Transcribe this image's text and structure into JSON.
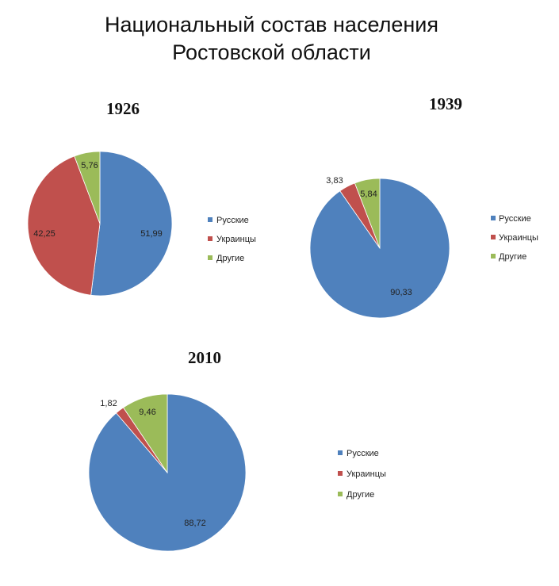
{
  "page": {
    "title_line1": "Национальный состав населения",
    "title_line2": "Ростовской области"
  },
  "colors": {
    "russians": "#4f81bd",
    "ukrainians": "#c0504d",
    "others": "#9bbb59"
  },
  "chart_data": [
    {
      "type": "pie",
      "title": "1926",
      "categories": [
        "Русские",
        "Украинцы",
        "Другие"
      ],
      "values": [
        51.99,
        42.25,
        5.76
      ],
      "labels": [
        "51,99",
        "42,25",
        "5,76"
      ],
      "legend": "right"
    },
    {
      "type": "pie",
      "title": "1939",
      "categories": [
        "Русские",
        "Украинцы",
        "Другие"
      ],
      "values": [
        90.33,
        3.83,
        5.84
      ],
      "labels": [
        "90,33",
        "3,83",
        "5,84"
      ],
      "legend": "right"
    },
    {
      "type": "pie",
      "title": "2010",
      "categories": [
        "Русские",
        "Украинцы",
        "Другие"
      ],
      "values": [
        88.72,
        1.82,
        9.46
      ],
      "labels": [
        "88,72",
        "1,82",
        "9,46"
      ],
      "legend": "right"
    }
  ]
}
